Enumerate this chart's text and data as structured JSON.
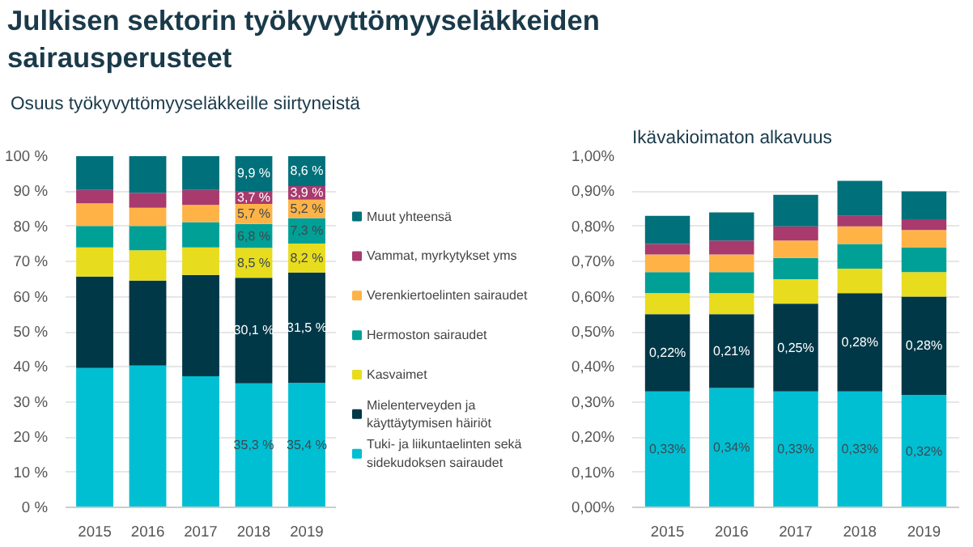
{
  "chart_data": [
    {
      "type": "bar",
      "title": "Julkisen sektorin työkyvyttömyyseläkkeiden sairausperusteet",
      "subtitle": "Osuus työkyvyttömyyseläkkeille siirtyneistä",
      "stacked": true,
      "categories": [
        "2015",
        "2016",
        "2017",
        "2018",
        "2019"
      ],
      "ylim": [
        0,
        100
      ],
      "yticks": [
        {
          "value": 0,
          "label": "0 %"
        },
        {
          "value": 10,
          "label": "10 %"
        },
        {
          "value": 20,
          "label": "20 %"
        },
        {
          "value": 30,
          "label": "30 %"
        },
        {
          "value": 40,
          "label": "40 %"
        },
        {
          "value": 50,
          "label": "50 %"
        },
        {
          "value": 60,
          "label": "60 %"
        },
        {
          "value": 70,
          "label": "70 %"
        },
        {
          "value": 80,
          "label": "80 %"
        },
        {
          "value": 90,
          "label": "90 %"
        },
        {
          "value": 100,
          "label": "100 %"
        }
      ],
      "grid": "y",
      "legend": "right",
      "series": [
        {
          "name": "Tuki- ja liikuntaelinten sekä sidekudoksen sairaudet",
          "color": "#00bfd3",
          "values": [
            39.7,
            40.4,
            37.3,
            35.3,
            35.4
          ],
          "value_labels": [
            null,
            null,
            null,
            "35,3 %",
            "35,4 %"
          ]
        },
        {
          "name": "Mielenterveyden ja käyttäytymisen häiriöt",
          "color": "#003848",
          "values": [
            26.0,
            24.2,
            28.9,
            30.1,
            31.5
          ],
          "value_labels": [
            null,
            null,
            null,
            "30,1 %",
            "31,5 %"
          ]
        },
        {
          "name": "Kasvaimet",
          "color": "#e8dc1e",
          "values": [
            8.3,
            8.6,
            7.8,
            8.5,
            8.2
          ],
          "value_labels": [
            null,
            null,
            null,
            "8,5 %",
            "8,2 %"
          ]
        },
        {
          "name": "Hermoston sairaudet",
          "color": "#00a096",
          "values": [
            6.1,
            6.9,
            7.2,
            6.8,
            7.3
          ],
          "value_labels": [
            null,
            null,
            null,
            "6,8 %",
            "7,3 %"
          ]
        },
        {
          "name": "Verenkiertoelinten sairaudet",
          "color": "#ffb347",
          "values": [
            6.5,
            5.2,
            4.9,
            5.7,
            5.2
          ],
          "value_labels": [
            null,
            null,
            null,
            "5,7 %",
            "5,2 %"
          ]
        },
        {
          "name": "Vammat, myrkytykset yms",
          "color": "#a83a6e",
          "values": [
            3.8,
            4.3,
            4.3,
            3.7,
            3.9
          ],
          "value_labels": [
            null,
            null,
            null,
            "3,7 %",
            "3,9 %"
          ]
        },
        {
          "name": "Muut yhteensä",
          "color": "#00707a",
          "values": [
            9.6,
            10.4,
            9.6,
            9.9,
            8.6
          ],
          "value_labels": [
            null,
            null,
            null,
            "9,9 %",
            "8,6 %"
          ]
        }
      ]
    },
    {
      "type": "bar",
      "title": "Ikävakioimaton alkavuus",
      "stacked": true,
      "categories": [
        "2015",
        "2016",
        "2017",
        "2018",
        "2019"
      ],
      "ylim": [
        0,
        1
      ],
      "yticks": [
        {
          "value": 0,
          "label": "0,00%"
        },
        {
          "value": 0.1,
          "label": "0,10%"
        },
        {
          "value": 0.2,
          "label": "0,20%"
        },
        {
          "value": 0.3,
          "label": "0,30%"
        },
        {
          "value": 0.4,
          "label": "0,40%"
        },
        {
          "value": 0.5,
          "label": "0,50%"
        },
        {
          "value": 0.6,
          "label": "0,60%"
        },
        {
          "value": 0.7,
          "label": "0,70%"
        },
        {
          "value": 0.8,
          "label": "0,80%"
        },
        {
          "value": 0.9,
          "label": "0,90%"
        },
        {
          "value": 1,
          "label": "1,00%"
        }
      ],
      "grid": "y",
      "series": [
        {
          "color": "#00bfd3",
          "values": [
            0.33,
            0.34,
            0.33,
            0.33,
            0.32
          ],
          "value_labels": [
            "0,33%",
            "0,34%",
            "0,33%",
            "0,33%",
            "0,32%"
          ]
        },
        {
          "color": "#003848",
          "values": [
            0.22,
            0.21,
            0.25,
            0.28,
            0.28
          ],
          "value_labels": [
            "0,22%",
            "0,21%",
            "0,25%",
            "0,28%",
            "0,28%"
          ]
        },
        {
          "color": "#e8dc1e",
          "values": [
            0.06,
            0.06,
            0.07,
            0.07,
            0.07
          ]
        },
        {
          "color": "#00a096",
          "values": [
            0.06,
            0.06,
            0.06,
            0.07,
            0.07
          ]
        },
        {
          "color": "#ffb347",
          "values": [
            0.05,
            0.05,
            0.05,
            0.05,
            0.05
          ]
        },
        {
          "color": "#a83a6e",
          "values": [
            0.03,
            0.04,
            0.04,
            0.03,
            0.03
          ]
        },
        {
          "color": "#00707a",
          "values": [
            0.08,
            0.08,
            0.09,
            0.1,
            0.08
          ]
        }
      ]
    }
  ]
}
